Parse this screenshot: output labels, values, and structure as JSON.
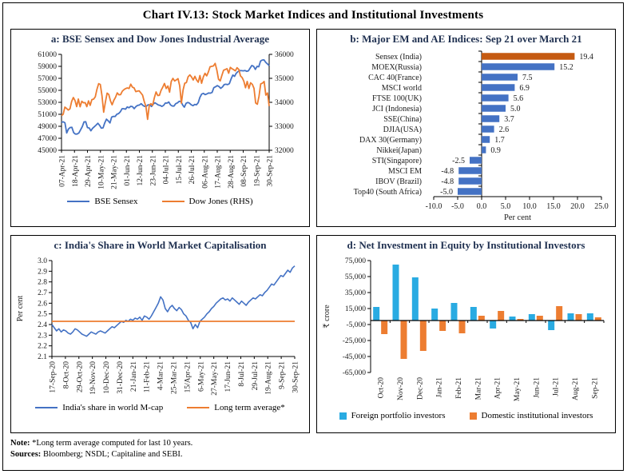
{
  "figure": {
    "title": "Chart IV.13: Stock Market Indices and Institutional Investments",
    "note_label": "Note:",
    "note_text": " *Long term average computed for last 10 years.",
    "sources_label": "Sources:",
    "sources_text": " Bloomberg; NSDL; Capitaline and SEBI."
  },
  "colors": {
    "line_blue": "#4472C4",
    "line_orange": "#ED7D31",
    "bar_blue": "#4472C4",
    "bar_dark_orange": "#C55A11",
    "bar_cyan": "#29ABE2",
    "panel_title": "#1f3050",
    "axis": "#000000"
  },
  "chart_data": [
    {
      "id": "a",
      "type": "line",
      "title": "a: BSE Sensex and Dow Jones Industrial Average",
      "left_axis": {
        "min": 45000,
        "max": 61000,
        "step": 2000
      },
      "right_axis": {
        "min": 32000,
        "max": 36000,
        "step": 1000
      },
      "x_tick_labels": [
        "07-Apr-21",
        "18-Apr-21",
        "29-Apr-21",
        "10-May-21",
        "21-May-21",
        "01-Jun-21",
        "12-Jun-21",
        "23-Jun-21",
        "04-Jul-21",
        "15-Jul-21",
        "26-Jul-21",
        "06-Aug-21",
        "17-Aug-21",
        "28-Aug-21",
        "08-Sep-21",
        "19-Sep-21",
        "30-Sep-21"
      ],
      "series": [
        {
          "name": "BSE Sensex",
          "axis": "left",
          "color": "#4472C4",
          "values": [
            49662,
            49746,
            49591,
            47883,
            48544,
            48804,
            48832,
            47949,
            47705,
            47706,
            47878,
            48387,
            48944,
            49734,
            49766,
            48782,
            48718,
            48254,
            48678,
            48950,
            49206,
            49502,
            49161,
            48691,
            48733,
            49581,
            50193,
            49903,
            49565,
            50540,
            50652,
            50638,
            51018,
            51115,
            51423,
            51937,
            51935,
            51849,
            52232,
            52100,
            52328,
            52275,
            51941,
            52300,
            52474,
            52551,
            52773,
            52502,
            52323,
            52344,
            52574,
            52588,
            52306,
            52699,
            52925,
            52735,
            52549,
            52483,
            52318,
            52484,
            52880,
            52861,
            53055,
            52569,
            52386,
            52372,
            52769,
            52904,
            53159,
            53140,
            52553,
            52199,
            52837,
            52976,
            52852,
            52579,
            52444,
            52653,
            52587,
            52950,
            53823,
            54370,
            54492,
            54278,
            54403,
            54555,
            54526,
            54644,
            55437,
            55582,
            55793,
            55629,
            55329,
            55556,
            55959,
            56015,
            55949,
            56125,
            56890,
            57552,
            57338,
            57853,
            58130,
            58297,
            58279,
            58251,
            58305,
            58178,
            58247,
            58723,
            59141,
            59016,
            58491,
            59005,
            58927,
            59885,
            60048,
            60078,
            59668,
            59413,
            59126
          ]
        },
        {
          "name": "Dow Jones (RHS)",
          "axis": "right",
          "color": "#ED7D31",
          "values": [
            33446,
            33504,
            33801,
            33746,
            33677,
            33731,
            34036,
            34201,
            34078,
            33821,
            34137,
            33815,
            34043,
            33981,
            33985,
            33820,
            34060,
            33875,
            34113,
            34133,
            34230,
            34548,
            34778,
            34743,
            34269,
            33588,
            34021,
            34382,
            34328,
            34061,
            33896,
            34084,
            34208,
            34394,
            34312,
            34323,
            34464,
            34529,
            34575,
            34600,
            34577,
            34756,
            34630,
            34600,
            34447,
            34466,
            34480,
            34393,
            34299,
            34034,
            33823,
            33290,
            33877,
            33945,
            33874,
            34196,
            34434,
            34283,
            34292,
            34503,
            34633,
            34786,
            34577,
            34681,
            34422,
            34870,
            34996,
            34889,
            34933,
            34987,
            34688,
            33962,
            34512,
            34798,
            34823,
            35062,
            35144,
            35058,
            34930,
            35084,
            34935,
            34838,
            35116,
            34793,
            35064,
            35209,
            35102,
            35265,
            35485,
            35500,
            35515,
            35625,
            35343,
            34961,
            34895,
            35120,
            35336,
            35366,
            35405,
            35213,
            35456,
            35400,
            35361,
            35313,
            35444,
            35369,
            35100,
            35031,
            34879,
            34608,
            34870,
            34578,
            34814,
            34751,
            34585,
            33970,
            33920,
            34258,
            34765,
            34798,
            34869,
            34300,
            34390,
            33844
          ]
        }
      ]
    },
    {
      "id": "b",
      "type": "bar",
      "orientation": "horizontal",
      "title": "b: Major EM and AE Indices: Sep 21 over March 21",
      "xlabel": "Per cent",
      "x_ticks": [
        -10,
        -5,
        0,
        5,
        10,
        15,
        20,
        25
      ],
      "categories": [
        "Sensex (India)",
        "MOEX(Russia)",
        "CAC 40(France)",
        "MSCI world",
        "FTSE 100(UK)",
        "JCI (Indonesia)",
        "SSE(China)",
        "DJIA(USA)",
        "DAX 30(Germany)",
        "Nikkei(Japan)",
        "STI(Singapore)",
        "MSCI EM",
        "IBOV (Brazil)",
        "Top40 (South Africa)"
      ],
      "values": [
        19.4,
        15.2,
        7.5,
        6.9,
        5.6,
        5.0,
        3.7,
        2.6,
        1.7,
        0.9,
        -2.5,
        -4.8,
        -4.8,
        -5.0
      ],
      "bar_color": "#4472C4",
      "highlight_index": 0,
      "highlight_color": "#C55A11"
    },
    {
      "id": "c",
      "type": "line",
      "title": "c: India's Share in World Market Capitalisation",
      "ylabel": "Per cent",
      "y_axis": {
        "min": 2.1,
        "max": 3.0,
        "step": 0.1
      },
      "x_tick_labels": [
        "17-Sep-20",
        "8-Oct-20",
        "29-Oct-20",
        "19-Nov-20",
        "10-Dec-20",
        "31-Dec-20",
        "21-Jan-21",
        "11-Feb-21",
        "4-Mar-21",
        "25-Mar-21",
        "15/Apr-21",
        "6-May-21",
        "27-May-21",
        "17-Jun-21",
        "8-Jul-21",
        "29-Jul-21",
        "19-Aug-21",
        "9-Sep-21",
        "30-Sep-21"
      ],
      "series": [
        {
          "name": "India's share in world M-cap",
          "color": "#4472C4",
          "values": [
            2.4,
            2.37,
            2.34,
            2.36,
            2.33,
            2.35,
            2.34,
            2.32,
            2.31,
            2.33,
            2.36,
            2.35,
            2.33,
            2.31,
            2.3,
            2.29,
            2.31,
            2.33,
            2.32,
            2.31,
            2.33,
            2.34,
            2.33,
            2.32,
            2.34,
            2.36,
            2.38,
            2.37,
            2.39,
            2.41,
            2.43,
            2.42,
            2.44,
            2.43,
            2.45,
            2.44,
            2.46,
            2.45,
            2.47,
            2.44,
            2.48,
            2.47,
            2.45,
            2.48,
            2.52,
            2.56,
            2.6,
            2.66,
            2.63,
            2.55,
            2.52,
            2.56,
            2.58,
            2.55,
            2.53,
            2.56,
            2.54,
            2.5,
            2.48,
            2.44,
            2.42,
            2.36,
            2.4,
            2.37,
            2.43,
            2.45,
            2.47,
            2.5,
            2.52,
            2.55,
            2.57,
            2.6,
            2.62,
            2.64,
            2.65,
            2.63,
            2.64,
            2.62,
            2.65,
            2.63,
            2.61,
            2.59,
            2.62,
            2.6,
            2.58,
            2.61,
            2.63,
            2.65,
            2.64,
            2.66,
            2.68,
            2.67,
            2.7,
            2.72,
            2.75,
            2.78,
            2.77,
            2.8,
            2.83,
            2.86,
            2.85,
            2.88,
            2.91,
            2.89,
            2.93,
            2.95
          ]
        },
        {
          "name": "Long term average*",
          "color": "#ED7D31",
          "constant": 2.43
        }
      ]
    },
    {
      "id": "d",
      "type": "bar",
      "orientation": "vertical-grouped",
      "title": "d: Net Investment in Equity by Institutional Investors",
      "ylabel": "₹ crore",
      "y_tick_values": [
        75000,
        55000,
        35000,
        15000,
        -5000,
        -25000,
        -45000,
        -65000
      ],
      "y_tick_labels": [
        "75,000",
        "55,000",
        "35,000",
        "15,000",
        "-5,000",
        "-25,000",
        "-45,000",
        "-65,000"
      ],
      "ylim": [
        -65000,
        75000
      ],
      "categories": [
        "Oct-20",
        "Nov-20",
        "Dec-20",
        "Jan-21",
        "Feb-21",
        "Mar-21",
        "Apr-21",
        "May-21",
        "Jun-21",
        "Jul-21",
        "Aug-21",
        "Sep-21"
      ],
      "series": [
        {
          "name": "Foreign portfolio investors",
          "color": "#29ABE2",
          "values": [
            17000,
            70000,
            54000,
            15000,
            22000,
            17000,
            -10000,
            5000,
            8000,
            -12000,
            9000,
            9000
          ]
        },
        {
          "name": "Domestic institutional investors",
          "color": "#ED7D31",
          "values": [
            -17000,
            -48000,
            -38000,
            -13000,
            -16000,
            6000,
            12000,
            2000,
            6000,
            18000,
            8000,
            4000
          ]
        }
      ]
    }
  ]
}
